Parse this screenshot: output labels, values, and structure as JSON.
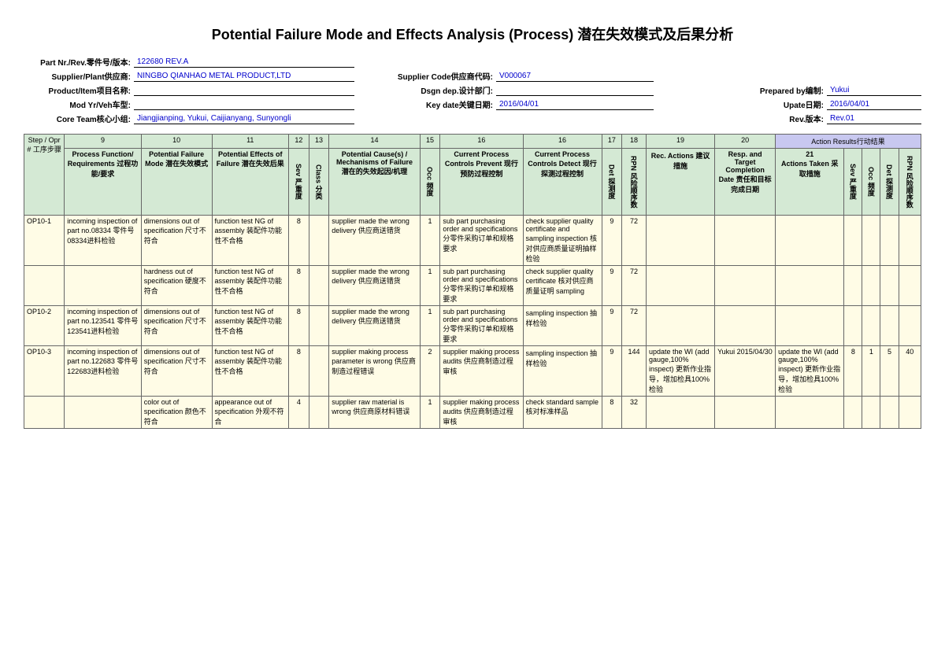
{
  "title": "Potential Failure Mode and Effects Analysis (Process) 潜在失效模式及后果分析",
  "header": {
    "part_nr_label": "Part Nr./Rev.零件号/版本:",
    "part_nr": "122680 REV.A",
    "supplier_label": "Supplier/Plant供应商:",
    "supplier": "NINGBO QIANHAO METAL PRODUCT,LTD",
    "supplier_code_label": "Supplier Code供应商代码:",
    "supplier_code": "V000067",
    "product_label": "Product/Item项目名称:",
    "product": "",
    "dsgn_label": "Dsgn dep.设计部门:",
    "dsgn": "",
    "prepared_label": "Prepared by编制:",
    "prepared": "Yukui",
    "mod_label": "Mod Yr/Veh车型:",
    "mod": "",
    "key_date_label": "Key date关键日期:",
    "key_date": "2016/04/01",
    "update_label": "Upate日期:",
    "update": "2016/04/01",
    "core_label": "Core Team核心小组:",
    "core": "Jiangjianping, Yukui, Caijianyang, Sunyongli",
    "rev_label": "Rev.版本:",
    "rev": "Rev.01"
  },
  "colnums": [
    "9",
    "10",
    "11",
    "12",
    "13",
    "14",
    "15",
    "16",
    "16",
    "17",
    "18",
    "19",
    "20",
    "21"
  ],
  "colhdrs": {
    "step": "Step / Opr # 工序步骤",
    "func": "Process Function/ Requirements 过程功能/要求",
    "mode": "Potential Failure Mode 潜在失效模式",
    "eff": "Potential Effects of Failure 潜在失效后果",
    "sev": "Sev 严重度",
    "class": "Class 分类",
    "cause": "Potential Cause(s) / Mechanisms of Failure 潜在的失效起因/机理",
    "occ": "Occ 频度",
    "prev": "Current Process Controls Prevent 现行预防过程控制",
    "detc": "Current Process Controls Detect 现行探测过程控制",
    "det": "Det 探测度",
    "rpn": "RPN 风险顺序数",
    "rec": "Rec. Actions 建议措施",
    "resp": "Resp. and Target Completion Date 责任和目标完成日期",
    "action_results": "Action Results行动结果",
    "act": "Actions Taken 采取措施",
    "sev2": "Sev 严重度",
    "occ2": "Occ 频度",
    "det2": "Det 探测度",
    "rpn2": "RPN 风险顺序数"
  },
  "rows": [
    {
      "step": "OP10-1",
      "func": "incoming inspection of part no.08334 零件号08334进料检验",
      "mode": "dimensions out of specification 尺寸不符合",
      "eff": "function test NG of assembly 装配件功能性不合格",
      "sev": "8",
      "class": "",
      "cause": "supplier made the wrong delivery 供应商送错货",
      "occ": "1",
      "prev": "sub part purchasing order and specifications 分零件采购订单和规格要求",
      "detc": "check supplier quality certificate and sampling inspection 核对供应商质量证明抽样检验",
      "det": "9",
      "rpn": "72",
      "rec": "",
      "resp": "",
      "act": "",
      "sev2": "",
      "occ2": "",
      "det2": "",
      "rpn2": ""
    },
    {
      "step": "",
      "func": "",
      "mode": "hardness out of specification 硬度不符合",
      "eff": "function test NG of assembly 装配件功能性不合格",
      "sev": "8",
      "class": "",
      "cause": "supplier made the wrong delivery 供应商送错货",
      "occ": "1",
      "prev": "sub part purchasing order and specifications 分零件采购订单和规格要求",
      "detc": "check supplier quality certificate 核对供应商质量证明 sampling",
      "det": "9",
      "rpn": "72",
      "rec": "",
      "resp": "",
      "act": "",
      "sev2": "",
      "occ2": "",
      "det2": "",
      "rpn2": ""
    },
    {
      "step": "OP10-2",
      "func": "incoming inspection of part no.123541 零件号123541进料检验",
      "mode": "dimensions out of specification 尺寸不符合",
      "eff": "function test NG of assembly 装配件功能性不合格",
      "sev": "8",
      "class": "",
      "cause": "supplier made the wrong delivery 供应商送错货",
      "occ": "1",
      "prev": "sub part purchasing order and specifications 分零件采购订单和规格要求",
      "detc": "sampling inspection 抽样检验",
      "det": "9",
      "rpn": "72",
      "rec": "",
      "resp": "",
      "act": "",
      "sev2": "",
      "occ2": "",
      "det2": "",
      "rpn2": ""
    },
    {
      "step": "OP10-3",
      "func": "incoming inspection of part no.122683 零件号122683进料检验",
      "mode": "dimensions out of specification 尺寸不符合",
      "eff": "function test NG of assembly 装配件功能性不合格",
      "sev": "8",
      "class": "",
      "cause": "supplier making process parameter is wrong 供应商制造过程错误",
      "occ": "2",
      "prev": "supplier making process audits 供应商制造过程审核",
      "detc": "sampling inspection 抽样检验",
      "det": "9",
      "rpn": "144",
      "rec": "update the WI (add gauge,100% inspect) 更新作业指导，增加检具100%检验",
      "resp": "Yukui 2015/04/30",
      "act": "update the WI (add gauge,100% inspect) 更新作业指导，增加检具100%检验",
      "sev2": "8",
      "occ2": "1",
      "det2": "5",
      "rpn2": "40"
    },
    {
      "step": "",
      "func": "",
      "mode": "color out of specification 颜色不符合",
      "eff": "appearance out of specification 外观不符合",
      "sev": "4",
      "class": "",
      "cause": "supplier raw material is wrong 供应商原材料错误",
      "occ": "1",
      "prev": "supplier making process audits 供应商制造过程审核",
      "detc": "check standard sample 核对标准样品",
      "det": "8",
      "rpn": "32",
      "rec": "",
      "resp": "",
      "act": "",
      "sev2": "",
      "occ2": "",
      "det2": "",
      "rpn2": ""
    }
  ]
}
